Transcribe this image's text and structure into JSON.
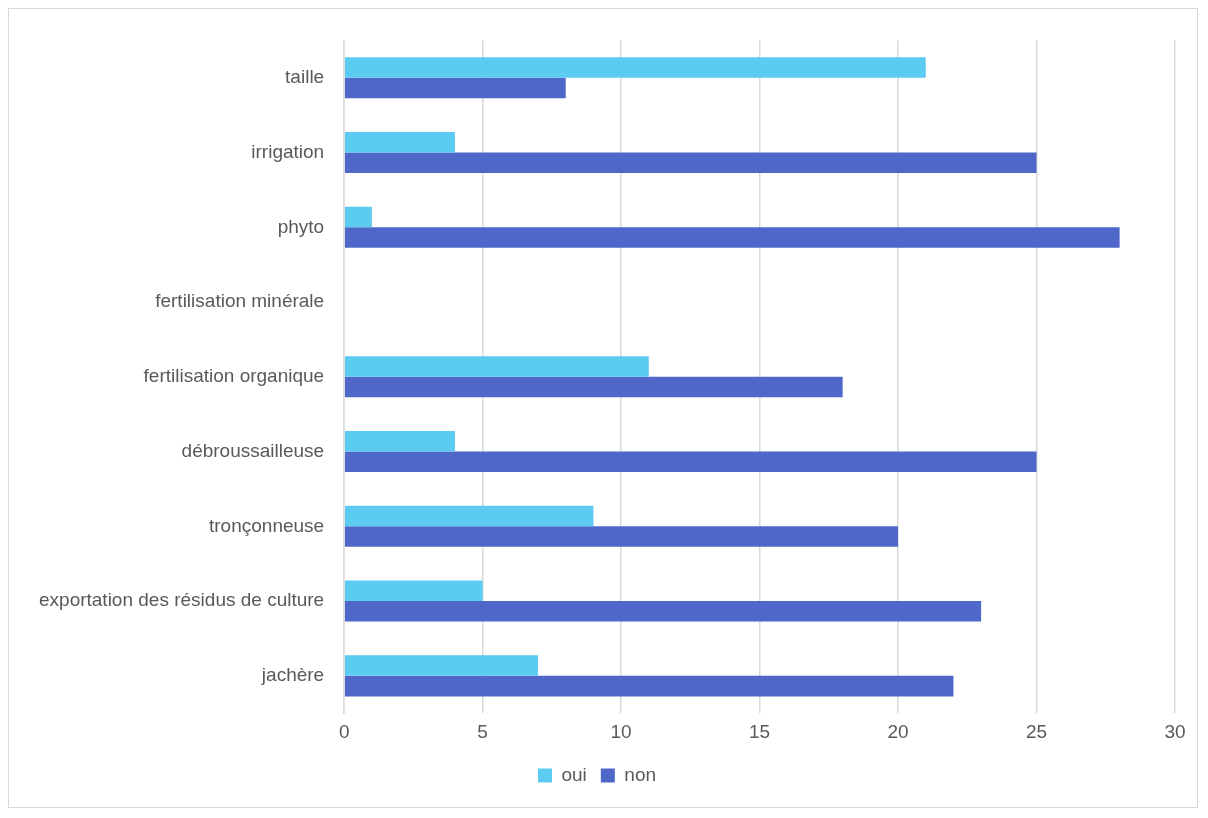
{
  "chart_data": {
    "type": "bar",
    "orientation": "horizontal",
    "categories": [
      "taille",
      "irrigation",
      "phyto",
      "fertilisation minérale",
      "fertilisation organique",
      "débroussailleuse",
      "tronçonneuse",
      "exportation des résidus de culture",
      "jachère"
    ],
    "series": [
      {
        "name": "oui",
        "color": "#5bcbf2",
        "values": [
          21,
          4,
          1,
          0,
          11,
          4,
          9,
          5,
          7
        ]
      },
      {
        "name": "non",
        "color": "#4f67c9",
        "values": [
          8,
          25,
          28,
          0,
          18,
          25,
          20,
          23,
          22
        ]
      }
    ],
    "xlim": [
      0,
      30
    ],
    "xticks": [
      0,
      5,
      10,
      15,
      20,
      25,
      30
    ],
    "grid": "x",
    "legend": "bottom"
  }
}
